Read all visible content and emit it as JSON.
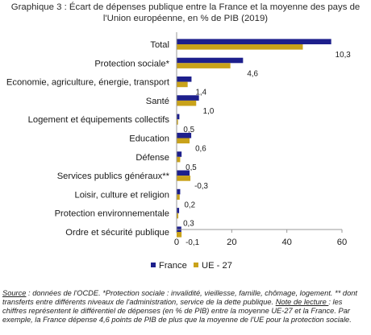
{
  "chart_data": {
    "type": "bar",
    "orientation": "horizontal",
    "title": [
      "Graphique 3 : Écart de dépenses publique entre la France et la moyenne des pays de",
      "l'Union européenne, en % de PIB (2019)"
    ],
    "categories": [
      "Total",
      "Protection sociale*",
      "Economie, agriculture, énergie, transport",
      "Santé",
      "Logement et équipements collectifs",
      "Education",
      "Défense",
      "Services publics généraux**",
      "Loisir, culture et religion",
      "Protection environnementale",
      "Ordre et sécurité publique"
    ],
    "series": [
      {
        "name": "France",
        "color": "#1d1f8c",
        "values": [
          56.1,
          24.1,
          5.4,
          8.1,
          1.0,
          5.3,
          1.8,
          4.7,
          1.3,
          0.9,
          1.7
        ]
      },
      {
        "name": "UE - 27",
        "color": "#c9a21a",
        "values": [
          45.8,
          19.5,
          4.0,
          7.1,
          0.5,
          4.7,
          1.3,
          5.0,
          1.1,
          0.6,
          1.8
        ]
      }
    ],
    "data_labels": [
      "10,3",
      "4,6",
      "1,4",
      "1,0",
      "0,5",
      "0,6",
      "0,5",
      "-0,3",
      "0,2",
      "0,3",
      "-0,1"
    ],
    "xlim": [
      0,
      60
    ],
    "xticks": [
      "0",
      "20",
      "40",
      "60"
    ],
    "grid": false,
    "legend_position": "bottom-left"
  },
  "source": {
    "label1": "Source",
    "text1": " : données de l'OCDE. *Protection sociale : invalidité, vieillesse, famille, chômage, logement. ** dont transferts entre différents niveaux de l'administration, service de la dette publique.  ",
    "label2": "Note de lecture ",
    "text2": ": les chiffres représentent le différentiel de dépenses (en % de PIB) entre la moyenne UE-27 et la France. Par exemple, la France dépense 4,6 points de PIB de plus que la moyenne de l'UE pour la protection sociale."
  }
}
